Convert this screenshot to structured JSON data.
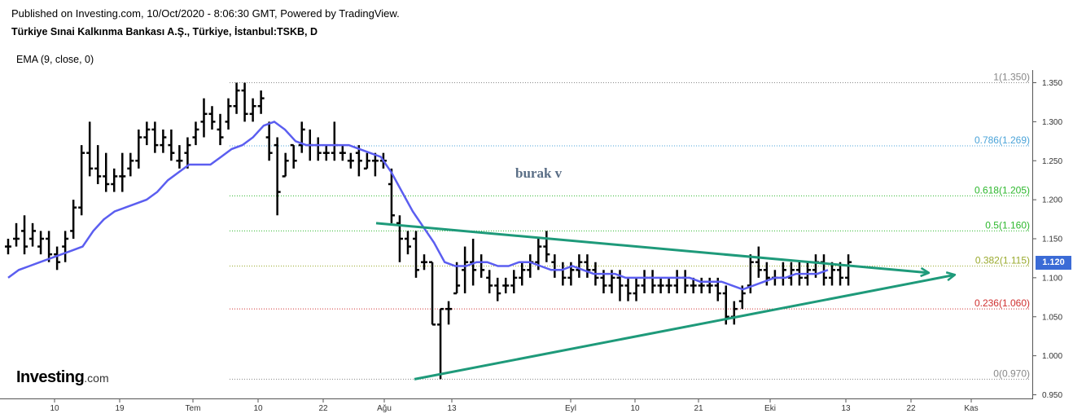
{
  "header": {
    "published": "Published on Investing.com, 10/Oct/2020 - 8:06:30 GMT, Powered by TradingView.",
    "instrument": "Türkiye Sınai Kalkınma Bankası A.Ş., Türkiye, İstanbul:TSKB, D",
    "indicator": "EMA (9, close, 0)"
  },
  "logo": {
    "text": "Investing",
    "suffix": ".com"
  },
  "annotation": {
    "text": "burak v",
    "color": "#5a6e86"
  },
  "last_price": {
    "label": "1.120",
    "color": "#3b6bd6"
  },
  "chart_data": {
    "type": "ohlc",
    "title": "Türkiye Sınai Kalkınma Bankası A.Ş., Türkiye, İstanbul:TSKB, D",
    "ylim": [
      0.95,
      1.37
    ],
    "x_ticks": [
      "10",
      "19",
      "Tem",
      "10",
      "22",
      "Ağu",
      "13",
      "Eyl",
      "10",
      "21",
      "Eki",
      "13",
      "22",
      "Kas"
    ],
    "y_ticks": [
      "1.350",
      "1.300",
      "1.250",
      "1.200",
      "1.150",
      "1.100",
      "1.050",
      "1.000",
      "0.950"
    ],
    "ohlc": [
      [
        1.14,
        1.15,
        1.13,
        1.14
      ],
      [
        1.15,
        1.17,
        1.14,
        1.15
      ],
      [
        1.16,
        1.18,
        1.13,
        1.14
      ],
      [
        1.15,
        1.17,
        1.14,
        1.16
      ],
      [
        1.14,
        1.16,
        1.13,
        1.15
      ],
      [
        1.15,
        1.16,
        1.12,
        1.13
      ],
      [
        1.13,
        1.14,
        1.11,
        1.12
      ],
      [
        1.14,
        1.16,
        1.12,
        1.15
      ],
      [
        1.16,
        1.2,
        1.15,
        1.19
      ],
      [
        1.19,
        1.27,
        1.18,
        1.26
      ],
      [
        1.26,
        1.3,
        1.23,
        1.24
      ],
      [
        1.24,
        1.27,
        1.22,
        1.23
      ],
      [
        1.23,
        1.26,
        1.21,
        1.22
      ],
      [
        1.22,
        1.24,
        1.21,
        1.23
      ],
      [
        1.23,
        1.26,
        1.21,
        1.23
      ],
      [
        1.24,
        1.26,
        1.23,
        1.25
      ],
      [
        1.25,
        1.29,
        1.24,
        1.28
      ],
      [
        1.28,
        1.3,
        1.27,
        1.29
      ],
      [
        1.29,
        1.3,
        1.26,
        1.27
      ],
      [
        1.27,
        1.29,
        1.26,
        1.28
      ],
      [
        1.27,
        1.29,
        1.25,
        1.26
      ],
      [
        1.25,
        1.27,
        1.24,
        1.25
      ],
      [
        1.26,
        1.28,
        1.24,
        1.27
      ],
      [
        1.28,
        1.3,
        1.27,
        1.29
      ],
      [
        1.3,
        1.33,
        1.28,
        1.31
      ],
      [
        1.31,
        1.32,
        1.29,
        1.3
      ],
      [
        1.29,
        1.31,
        1.27,
        1.28
      ],
      [
        1.3,
        1.33,
        1.29,
        1.32
      ],
      [
        1.32,
        1.35,
        1.31,
        1.34
      ],
      [
        1.34,
        1.35,
        1.3,
        1.31
      ],
      [
        1.31,
        1.33,
        1.3,
        1.32
      ],
      [
        1.32,
        1.34,
        1.31,
        1.33
      ],
      [
        1.28,
        1.3,
        1.25,
        1.26
      ],
      [
        1.27,
        1.28,
        1.18,
        1.21
      ],
      [
        1.23,
        1.26,
        1.23,
        1.25
      ],
      [
        1.27,
        1.27,
        1.24,
        1.25
      ],
      [
        1.27,
        1.3,
        1.26,
        1.29
      ],
      [
        1.27,
        1.29,
        1.25,
        1.27
      ],
      [
        1.27,
        1.28,
        1.25,
        1.26
      ],
      [
        1.26,
        1.27,
        1.25,
        1.26
      ],
      [
        1.26,
        1.3,
        1.25,
        1.27
      ],
      [
        1.26,
        1.27,
        1.25,
        1.26
      ],
      [
        1.25,
        1.26,
        1.24,
        1.25
      ],
      [
        1.26,
        1.27,
        1.23,
        1.25
      ],
      [
        1.24,
        1.26,
        1.24,
        1.25
      ],
      [
        1.25,
        1.26,
        1.23,
        1.25
      ],
      [
        1.25,
        1.26,
        1.24,
        1.25
      ],
      [
        1.22,
        1.24,
        1.17,
        1.18
      ],
      [
        1.17,
        1.18,
        1.12,
        1.15
      ],
      [
        1.15,
        1.16,
        1.13,
        1.14
      ],
      [
        1.15,
        1.16,
        1.1,
        1.11
      ],
      [
        1.12,
        1.13,
        1.11,
        1.12
      ],
      [
        1.12,
        1.12,
        1.04,
        1.04
      ],
      [
        1.04,
        1.06,
        0.97,
        1.06
      ],
      [
        1.06,
        1.07,
        1.04,
        1.06
      ],
      [
        1.08,
        1.12,
        1.08,
        1.09
      ],
      [
        1.11,
        1.14,
        1.08,
        1.12
      ],
      [
        1.12,
        1.15,
        1.09,
        1.11
      ],
      [
        1.12,
        1.13,
        1.1,
        1.11
      ],
      [
        1.1,
        1.11,
        1.08,
        1.09
      ],
      [
        1.09,
        1.1,
        1.07,
        1.08
      ],
      [
        1.09,
        1.1,
        1.08,
        1.09
      ],
      [
        1.09,
        1.11,
        1.08,
        1.1
      ],
      [
        1.1,
        1.12,
        1.09,
        1.11
      ],
      [
        1.11,
        1.13,
        1.1,
        1.12
      ],
      [
        1.12,
        1.15,
        1.11,
        1.14
      ],
      [
        1.14,
        1.16,
        1.12,
        1.13
      ],
      [
        1.12,
        1.13,
        1.1,
        1.11
      ],
      [
        1.11,
        1.12,
        1.09,
        1.1
      ],
      [
        1.1,
        1.12,
        1.09,
        1.11
      ],
      [
        1.11,
        1.13,
        1.1,
        1.12
      ],
      [
        1.12,
        1.13,
        1.1,
        1.11
      ],
      [
        1.11,
        1.12,
        1.09,
        1.1
      ],
      [
        1.1,
        1.11,
        1.08,
        1.09
      ],
      [
        1.09,
        1.11,
        1.08,
        1.1
      ],
      [
        1.1,
        1.11,
        1.07,
        1.09
      ],
      [
        1.09,
        1.1,
        1.07,
        1.08
      ],
      [
        1.08,
        1.1,
        1.07,
        1.09
      ],
      [
        1.09,
        1.11,
        1.08,
        1.1
      ],
      [
        1.1,
        1.11,
        1.08,
        1.09
      ],
      [
        1.09,
        1.1,
        1.08,
        1.09
      ],
      [
        1.09,
        1.1,
        1.08,
        1.09
      ],
      [
        1.09,
        1.11,
        1.08,
        1.1
      ],
      [
        1.1,
        1.11,
        1.08,
        1.09
      ],
      [
        1.09,
        1.1,
        1.08,
        1.09
      ],
      [
        1.09,
        1.1,
        1.08,
        1.09
      ],
      [
        1.09,
        1.1,
        1.08,
        1.09
      ],
      [
        1.09,
        1.1,
        1.07,
        1.08
      ],
      [
        1.08,
        1.09,
        1.04,
        1.05
      ],
      [
        1.05,
        1.07,
        1.04,
        1.06
      ],
      [
        1.07,
        1.09,
        1.06,
        1.08
      ],
      [
        1.09,
        1.13,
        1.08,
        1.12
      ],
      [
        1.12,
        1.14,
        1.1,
        1.11
      ],
      [
        1.11,
        1.12,
        1.09,
        1.1
      ],
      [
        1.1,
        1.11,
        1.09,
        1.1
      ],
      [
        1.1,
        1.12,
        1.09,
        1.11
      ],
      [
        1.1,
        1.12,
        1.09,
        1.11
      ],
      [
        1.11,
        1.12,
        1.09,
        1.1
      ],
      [
        1.1,
        1.12,
        1.09,
        1.11
      ],
      [
        1.11,
        1.13,
        1.1,
        1.12
      ],
      [
        1.12,
        1.13,
        1.09,
        1.1
      ],
      [
        1.1,
        1.12,
        1.09,
        1.11
      ],
      [
        1.11,
        1.12,
        1.09,
        1.1
      ],
      [
        1.1,
        1.13,
        1.09,
        1.12
      ]
    ],
    "ema": [
      1.1,
      1.11,
      1.115,
      1.12,
      1.125,
      1.13,
      1.135,
      1.14,
      1.16,
      1.175,
      1.185,
      1.19,
      1.195,
      1.2,
      1.21,
      1.225,
      1.235,
      1.245,
      1.245,
      1.245,
      1.255,
      1.265,
      1.27,
      1.28,
      1.295,
      1.3,
      1.29,
      1.275,
      1.27,
      1.27,
      1.27,
      1.27,
      1.27,
      1.265,
      1.26,
      1.255,
      1.235,
      1.21,
      1.185,
      1.165,
      1.145,
      1.12,
      1.115,
      1.115,
      1.12,
      1.12,
      1.115,
      1.115,
      1.12,
      1.12,
      1.115,
      1.11,
      1.11,
      1.115,
      1.11,
      1.105,
      1.105,
      1.105,
      1.1,
      1.1,
      1.1,
      1.1,
      1.1,
      1.1,
      1.1,
      1.095,
      1.095,
      1.095,
      1.09,
      1.085,
      1.09,
      1.095,
      1.1,
      1.1,
      1.105,
      1.105,
      1.105,
      1.11
    ],
    "fibonacci": [
      {
        "ratio": "1",
        "price": 1.35,
        "label": "1(1.350)",
        "color": "#888888"
      },
      {
        "ratio": "0.786",
        "price": 1.269,
        "label": "0.786(1.269)",
        "color": "#4aa3d8"
      },
      {
        "ratio": "0.618",
        "price": 1.205,
        "label": "0.618(1.205)",
        "color": "#2eb82e"
      },
      {
        "ratio": "0.5",
        "price": 1.16,
        "label": "0.5(1.160)",
        "color": "#2eb82e"
      },
      {
        "ratio": "0.382",
        "price": 1.115,
        "label": "0.382(1.115)",
        "color": "#9aaa2e"
      },
      {
        "ratio": "0.236",
        "price": 1.06,
        "label": "0.236(1.060)",
        "color": "#d03030"
      },
      {
        "ratio": "0",
        "price": 0.97,
        "label": "0(0.970)",
        "color": "#888888"
      }
    ],
    "trendlines": [
      {
        "name": "upper",
        "from": [
          "Ağu",
          1.17
        ],
        "to": [
          "Kas",
          1.12
        ],
        "color": "#1e9a7a"
      },
      {
        "name": "lower",
        "from": [
          "Ağu",
          0.97
        ],
        "to": [
          "Kas",
          1.09
        ],
        "color": "#1e9a7a"
      }
    ],
    "grid": false
  }
}
